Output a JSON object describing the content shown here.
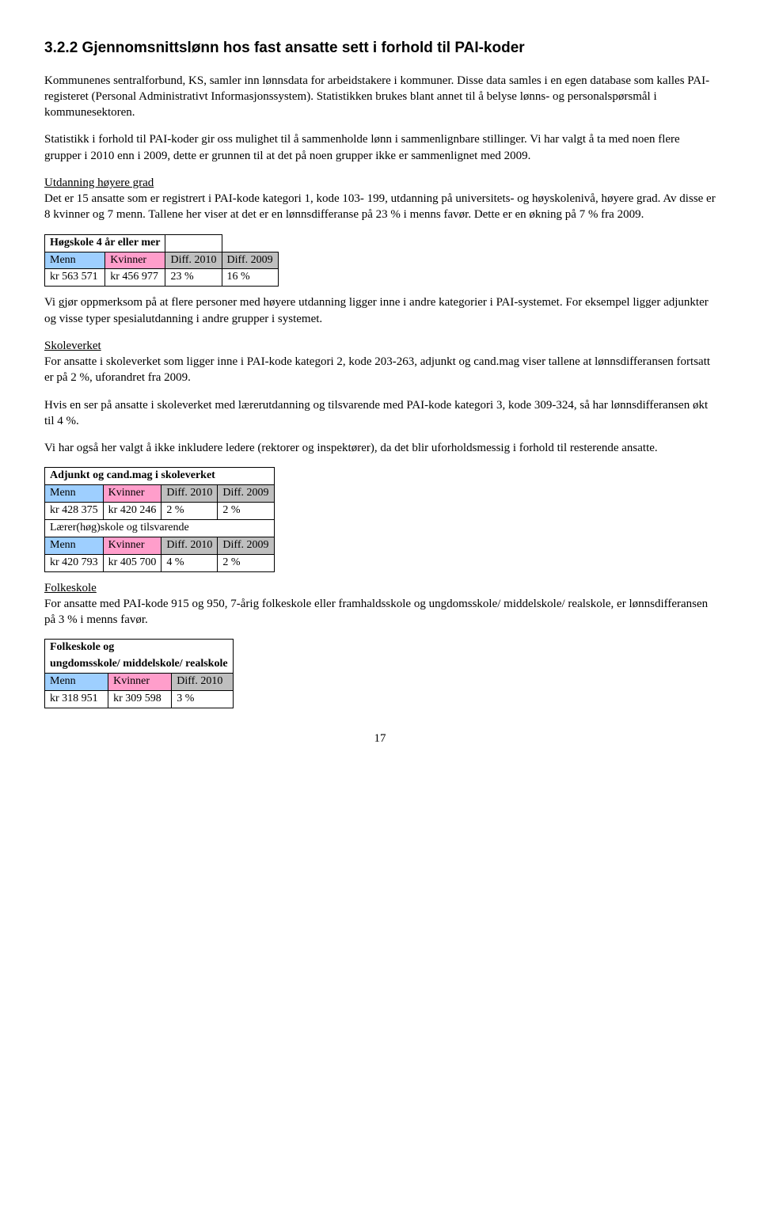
{
  "heading": "3.2.2 Gjennomsnittslønn hos fast ansatte sett i forhold til PAI-koder",
  "para1": "Kommunenes sentralforbund, KS, samler inn lønnsdata for arbeidstakere i kommuner. Disse data samles i en egen database som kalles PAI-registeret (Personal Administrativt Informasjonssystem). Statistikken brukes blant annet til å belyse lønns- og personalspørsmål i kommunesektoren.",
  "para2": "Statistikk i forhold til PAI-koder gir oss mulighet til å sammenholde lønn i sammenlignbare stillinger. Vi har valgt å ta med noen flere grupper i 2010 enn i 2009, dette er grunnen til at det på noen grupper ikke er sammenlignet med 2009.",
  "utdanning_head": "Utdanning høyere grad",
  "utdanning_body": "Det er 15 ansatte som er registrert i PAI-kode kategori 1, kode 103- 199, utdanning på universitets- og høyskolenivå, høyere grad. Av disse er 8 kvinner og 7 menn. Tallene her viser at det er en lønnsdifferanse på 23 % i menns favør. Dette er en økning på 7 % fra 2009.",
  "table1": {
    "title": "Høgskole 4 år eller mer",
    "menn_label": "Menn",
    "kvinner_label": "Kvinner",
    "diff2010_label": "Diff. 2010",
    "diff2009_label": "Diff. 2009",
    "menn_val": "kr   563 571",
    "kvinner_val": "kr   456 977",
    "diff2010_val": "23 %",
    "diff2009_val": "16 %"
  },
  "after_t1": "Vi gjør oppmerksom på at flere personer med høyere utdanning ligger inne i andre kategorier i PAI-systemet. For eksempel ligger adjunkter og visse typer spesialutdanning i andre grupper i systemet.",
  "skoleverket_head": "Skoleverket",
  "skoleverket_p1": "For ansatte i skoleverket som ligger inne i PAI-kode kategori 2, kode 203-263, adjunkt og cand.mag viser tallene at lønnsdifferansen fortsatt er på 2 %, uforandret fra 2009.",
  "skoleverket_p2": "Hvis en ser på ansatte i skoleverket med lærerutdanning og tilsvarende med PAI-kode kategori 3, kode 309-324, så har lønnsdifferansen økt til 4 %.",
  "skoleverket_p3": "Vi har også her valgt å ikke inkludere ledere (rektorer og inspektører), da det blir uforholdsmessig i forhold til resterende ansatte.",
  "table2": {
    "title1": "Adjunkt og cand.mag i skoleverket",
    "menn_label": "Menn",
    "kvinner_label": "Kvinner",
    "diff2010_label": "Diff. 2010",
    "diff2009_label": "Diff. 2009",
    "r1_menn": "kr    428 375",
    "r1_kvinner": "kr  420 246",
    "r1_d10": "2 %",
    "r1_d09": "2 %",
    "title2": "Lærer(høg)skole og tilsvarende",
    "r2_menn": "kr    420 793",
    "r2_kvinner": "kr  405 700",
    "r2_d10": "4 %",
    "r2_d09": "2 %"
  },
  "folkeskole_head": "Folkeskole",
  "folkeskole_body": "For ansatte med PAI-kode 915 og 950, 7-årig folkeskole eller framhaldsskole og ungdomsskole/ middelskole/ realskole, er lønnsdifferansen på 3 % i menns favør.",
  "table3": {
    "title_l1": "Folkeskole og",
    "title_l2": "ungdomsskole/ middelskole/ realskole",
    "menn_label": "Menn",
    "kvinner_label": "Kvinner",
    "diff2010_label": "Diff. 2010",
    "menn_val": "kr   318 951",
    "kvinner_val": "kr   309 598",
    "diff2010_val": "3 %"
  },
  "pagenum": "17",
  "colors": {
    "menn": "#9ecfff",
    "kvinner": "#ff9ecb",
    "diff": "#bfbfbf"
  }
}
